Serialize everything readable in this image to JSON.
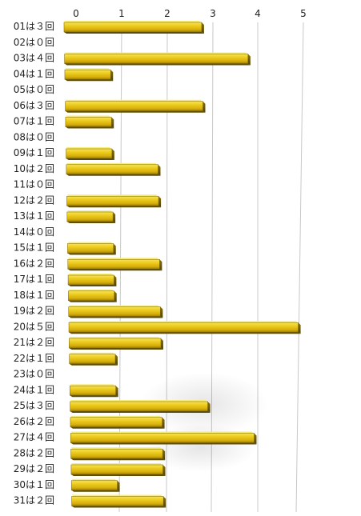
{
  "chart_data": {
    "type": "bar",
    "orientation": "horizontal",
    "categories": [
      "01は３回",
      "02は０回",
      "03は４回",
      "04は１回",
      "05は０回",
      "06は３回",
      "07は１回",
      "08は０回",
      "09は１回",
      "10は２回",
      "11は０回",
      "12は２回",
      "13は１回",
      "14は０回",
      "15は１回",
      "16は２回",
      "17は１回",
      "18は１回",
      "19は２回",
      "20は５回",
      "21は２回",
      "22は１回",
      "23は０回",
      "24は１回",
      "25は３回",
      "26は２回",
      "27は４回",
      "28は２回",
      "29は２回",
      "30は１回",
      "31は２回"
    ],
    "values": [
      3,
      0,
      4,
      1,
      0,
      3,
      1,
      0,
      1,
      2,
      0,
      2,
      1,
      0,
      1,
      2,
      1,
      1,
      2,
      5,
      2,
      1,
      0,
      1,
      3,
      2,
      4,
      2,
      2,
      1,
      2
    ],
    "xticks": [
      "0",
      "1",
      "2",
      "3",
      "4",
      "5"
    ],
    "xlim": [
      0,
      5
    ],
    "grid": true,
    "legend": "none",
    "colors": {
      "bar_top": "#f3dc3a",
      "bar_mid": "#e9c41a",
      "bar_bottom": "#a88a05",
      "bar_dark": "#6b5a08",
      "gridline": "#c8c8c8"
    }
  }
}
